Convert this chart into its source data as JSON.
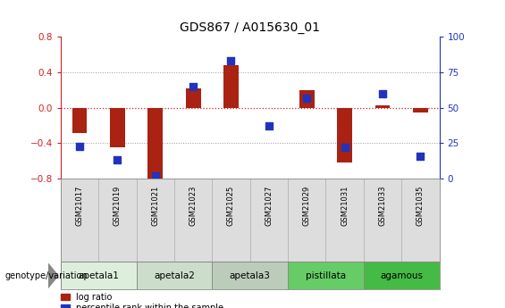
{
  "title": "GDS867 / A015630_01",
  "samples": [
    "GSM21017",
    "GSM21019",
    "GSM21021",
    "GSM21023",
    "GSM21025",
    "GSM21027",
    "GSM21029",
    "GSM21031",
    "GSM21033",
    "GSM21035"
  ],
  "log_ratio": [
    -0.28,
    -0.45,
    -0.82,
    0.22,
    0.48,
    0.0,
    0.2,
    -0.62,
    0.03,
    -0.05
  ],
  "percentile_rank": [
    23,
    13,
    2,
    65,
    83,
    37,
    57,
    22,
    60,
    16
  ],
  "ylim_left": [
    -0.8,
    0.8
  ],
  "ylim_right": [
    0,
    100
  ],
  "yticks_left": [
    -0.8,
    -0.4,
    0.0,
    0.4,
    0.8
  ],
  "yticks_right": [
    0,
    25,
    50,
    75,
    100
  ],
  "bar_color": "#AA2211",
  "dot_color": "#2233BB",
  "groups": [
    {
      "label": "apetala1",
      "indices": [
        0,
        1
      ],
      "color": "#DDEEDD"
    },
    {
      "label": "apetala2",
      "indices": [
        2,
        3
      ],
      "color": "#CCDDCC"
    },
    {
      "label": "apetala3",
      "indices": [
        4,
        5
      ],
      "color": "#BBCCBB"
    },
    {
      "label": "pistillata",
      "indices": [
        6,
        7
      ],
      "color": "#66CC66"
    },
    {
      "label": "agamous",
      "indices": [
        8,
        9
      ],
      "color": "#44BB44"
    }
  ],
  "zero_line_color": "#DD2222",
  "grid_color": "#999999",
  "bg_color": "#FFFFFF",
  "legend_red_label": "log ratio",
  "legend_blue_label": "percentile rank within the sample",
  "left_tick_color": "#CC2222",
  "right_tick_color": "#2233BB",
  "genotype_label": "genotype/variation",
  "sample_row_color": "#DDDDDD",
  "bar_width": 0.4
}
